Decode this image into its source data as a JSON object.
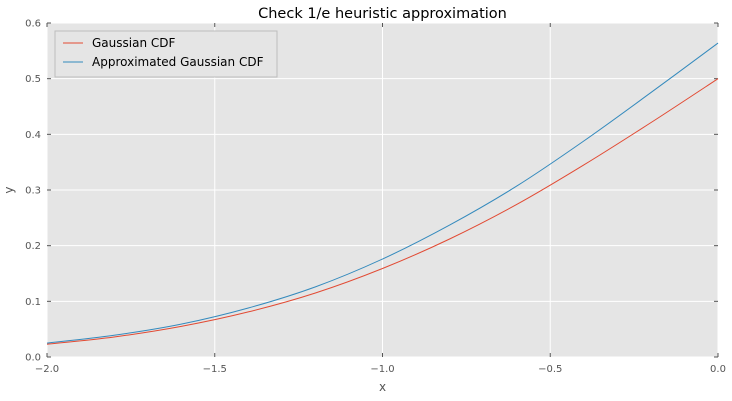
{
  "chart_data": {
    "type": "line",
    "title": "Check 1/e heuristic approximation",
    "xlabel": "x",
    "ylabel": "y",
    "xlim": [
      -2.0,
      0.0
    ],
    "ylim": [
      0.0,
      0.6
    ],
    "x_ticks": [
      -2.0,
      -1.5,
      -1.0,
      -0.5,
      0.0
    ],
    "x_tick_labels": [
      "−2.0",
      "−1.5",
      "−1.0",
      "−0.5",
      "0.0"
    ],
    "y_ticks": [
      0.0,
      0.1,
      0.2,
      0.3,
      0.4,
      0.5,
      0.6
    ],
    "y_tick_labels": [
      "0.0",
      "0.1",
      "0.2",
      "0.3",
      "0.4",
      "0.5",
      "0.6"
    ],
    "grid": true,
    "legend_position": "top-left",
    "x": [
      -2.0,
      -1.8,
      -1.6,
      -1.4,
      -1.2,
      -1.0,
      -0.8,
      -0.6,
      -0.4,
      -0.2,
      0.0
    ],
    "series": [
      {
        "name": "Gaussian CDF",
        "color": "#E24A33",
        "values": [
          0.023,
          0.036,
          0.055,
          0.081,
          0.115,
          0.159,
          0.212,
          0.274,
          0.345,
          0.421,
          0.5
        ]
      },
      {
        "name": "Approximated Gaussian CDF",
        "color": "#348ABD",
        "values": [
          0.025,
          0.039,
          0.059,
          0.088,
          0.126,
          0.176,
          0.237,
          0.307,
          0.388,
          0.475,
          0.564
        ]
      }
    ],
    "plot_background": "#E5E5E5",
    "grid_color": "#FFFFFF"
  }
}
